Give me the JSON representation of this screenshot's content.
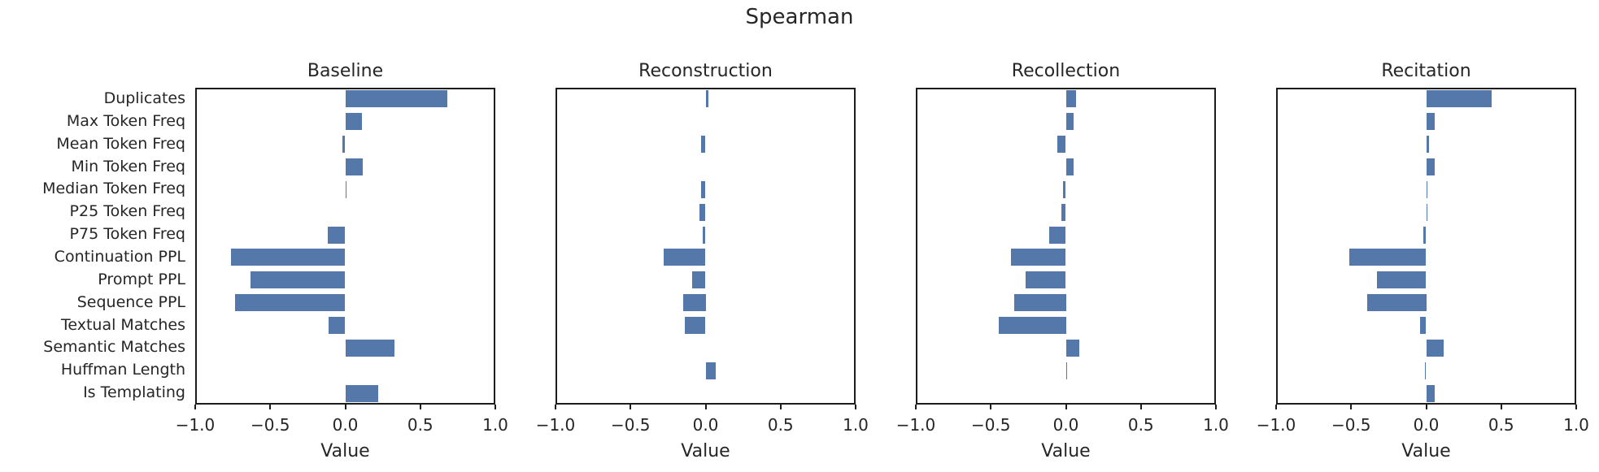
{
  "chart_data": {
    "type": "bar",
    "orientation": "horizontal",
    "suptitle": "Spearman",
    "xlabel": "Value",
    "xlim": [
      -1.0,
      1.0
    ],
    "xticks": [
      -1.0,
      -0.5,
      0.0,
      0.5,
      1.0
    ],
    "xtick_labels": [
      "−1.0",
      "−0.5",
      "0.0",
      "0.5",
      "1.0"
    ],
    "categories": [
      "Duplicates",
      "Max Token Freq",
      "Mean Token Freq",
      "Min Token Freq",
      "Median Token Freq",
      "P25 Token Freq",
      "P75 Token Freq",
      "Continuation PPL",
      "Prompt PPL",
      "Sequence PPL",
      "Textual Matches",
      "Semantic Matches",
      "Huffman Length",
      "Is Templating"
    ],
    "panels": [
      {
        "title": "Baseline",
        "values": [
          0.69,
          0.11,
          -0.02,
          0.12,
          0.01,
          0.0,
          -0.12,
          -0.77,
          -0.64,
          -0.74,
          -0.11,
          0.33,
          0.0,
          0.22
        ]
      },
      {
        "title": "Reconstruction",
        "values": [
          0.02,
          0.0,
          -0.03,
          0.0,
          -0.03,
          -0.04,
          -0.02,
          -0.28,
          -0.09,
          -0.15,
          -0.14,
          0.0,
          0.07,
          0.0
        ]
      },
      {
        "title": "Recollection",
        "values": [
          0.07,
          0.05,
          -0.06,
          0.05,
          -0.02,
          -0.03,
          -0.11,
          -0.37,
          -0.27,
          -0.35,
          -0.45,
          0.09,
          0.01,
          0.0
        ]
      },
      {
        "title": "Recitation",
        "values": [
          0.44,
          0.06,
          0.02,
          0.06,
          0.01,
          0.01,
          -0.02,
          -0.52,
          -0.33,
          -0.4,
          -0.04,
          0.12,
          -0.01,
          0.06
        ]
      }
    ],
    "grid": false,
    "legend": null,
    "style": {
      "bar_color": "#5578ab",
      "text_color": "#262626",
      "axis_color": "#1c1c1c",
      "background_color": "#ffffff"
    }
  }
}
